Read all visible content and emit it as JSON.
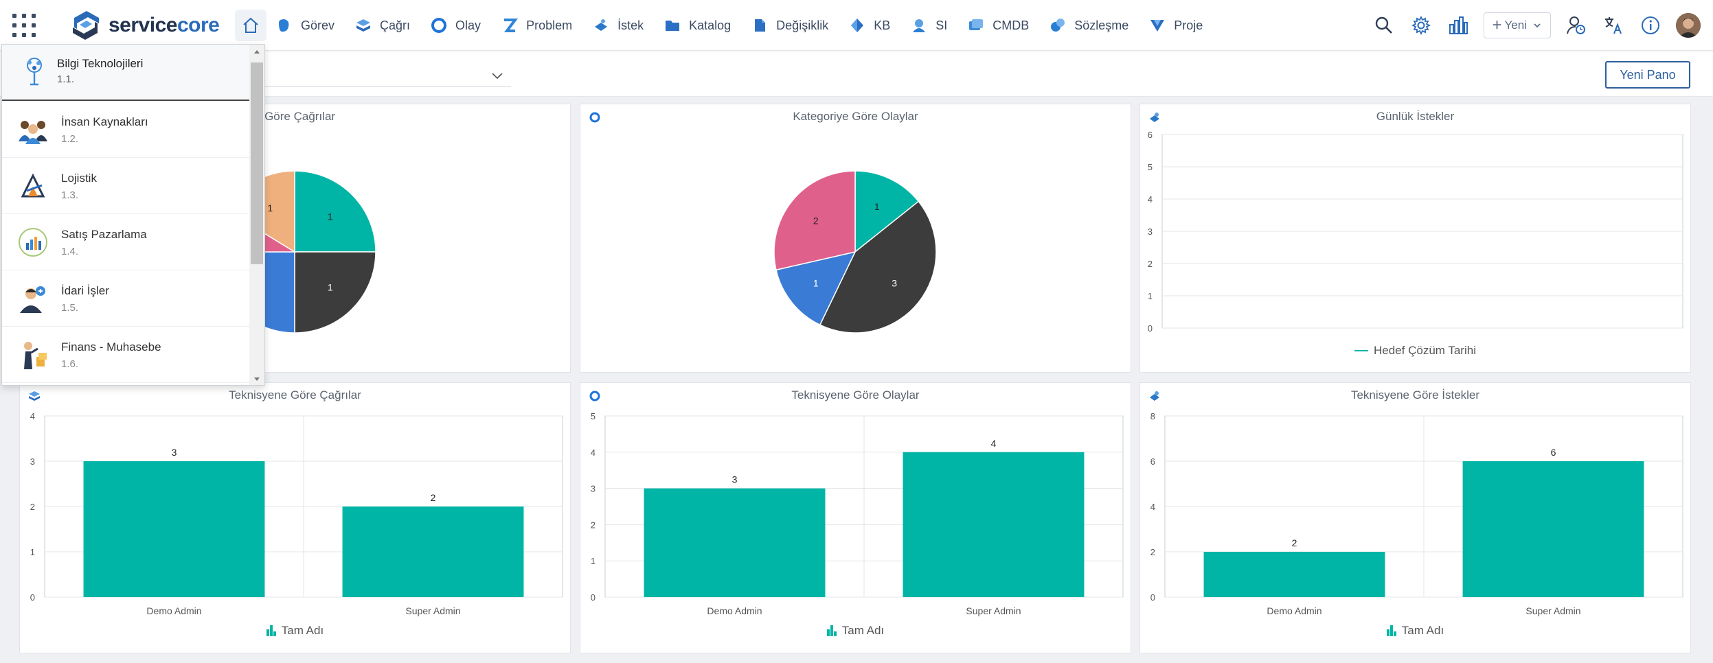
{
  "brand": {
    "name_a": "service",
    "name_b": "core"
  },
  "nav": [
    {
      "key": "gorev",
      "label": "Görev",
      "color": "#2a7fd4"
    },
    {
      "key": "cagri",
      "label": "Çağrı",
      "color": "#2a7fd4"
    },
    {
      "key": "olay",
      "label": "Olay",
      "color": "#1e73d8"
    },
    {
      "key": "problem",
      "label": "Problem",
      "color": "#2f86d6"
    },
    {
      "key": "istek",
      "label": "İstek",
      "color": "#2b78c9"
    },
    {
      "key": "katalog",
      "label": "Katalog",
      "color": "#2a6fc4"
    },
    {
      "key": "degisiklik",
      "label": "Değişiklik",
      "color": "#2a6fc4"
    },
    {
      "key": "kb",
      "label": "KB",
      "color": "#2a6fc4"
    },
    {
      "key": "si",
      "label": "SI",
      "color": "#2a7fd4"
    },
    {
      "key": "cmdb",
      "label": "CMDB",
      "color": "#3a8ad8"
    },
    {
      "key": "sozlesme",
      "label": "Sözleşme",
      "color": "#2a7fd4"
    },
    {
      "key": "proje",
      "label": "Proje",
      "color": "#2a6fc4"
    }
  ],
  "toolbar": {
    "new_label": "Yeni",
    "new_dashboard": "Yeni Pano"
  },
  "dropdown": {
    "items": [
      {
        "name": "Bilgi Teknolojileri",
        "code": "1.1."
      },
      {
        "name": "İnsan Kaynakları",
        "code": "1.2."
      },
      {
        "name": "Lojistik",
        "code": "1.3."
      },
      {
        "name": "Satış Pazarlama",
        "code": "1.4."
      },
      {
        "name": "İdari İşler",
        "code": "1.5."
      },
      {
        "name": "Finans - Muhasebe",
        "code": "1.6."
      }
    ]
  },
  "cards": {
    "pie1_title": "e Göre Çağrılar",
    "pie2_title": "Kategoriye Göre Olaylar",
    "line_title": "Günlük İstekler",
    "line_legend": "Hedef Çözüm Tarihi",
    "bar1_title": "Teknisyene Göre Çağrılar",
    "bar2_title": "Teknisyene Göre Olaylar",
    "bar3_title": "Teknisyene Göre İstekler",
    "bar_legend": "Tam Adı"
  },
  "colors": {
    "teal": "#00b5a6",
    "dark": "#3c3c3c",
    "blue": "#3a7bd5",
    "pink": "#e0608c",
    "peach": "#f0b07e",
    "accent": "#2b5f9e"
  },
  "chart_data": [
    {
      "type": "pie",
      "title": "e Göre Çağrılar",
      "slices": [
        {
          "value": 1,
          "color": "#00b5a6"
        },
        {
          "value": 1,
          "color": "#3c3c3c"
        },
        {
          "value": 1,
          "color": "#3a7bd5"
        },
        {
          "value": 0.35,
          "color": "#e0608c"
        },
        {
          "value": 0.65,
          "color": "#f0b07e"
        }
      ],
      "labels": [
        "1",
        "1",
        "1",
        "",
        "1"
      ]
    },
    {
      "type": "pie",
      "title": "Kategoriye Göre Olaylar",
      "slices": [
        {
          "value": 1,
          "color": "#00b5a6"
        },
        {
          "value": 3,
          "color": "#3c3c3c"
        },
        {
          "value": 1,
          "color": "#3a7bd5"
        },
        {
          "value": 2,
          "color": "#e0608c"
        }
      ],
      "labels": [
        "1",
        "3",
        "1",
        "2"
      ]
    },
    {
      "type": "line",
      "title": "Günlük İstekler",
      "series": [
        {
          "name": "Hedef Çözüm Tarihi",
          "values": []
        }
      ],
      "ylim": [
        0,
        6
      ],
      "yticks": [
        "0",
        "1",
        "2",
        "3",
        "4",
        "5",
        "6"
      ],
      "grid": true,
      "legend": "bottom"
    },
    {
      "type": "bar",
      "title": "Teknisyene Göre Çağrılar",
      "categories": [
        "Demo Admin",
        "Super Admin"
      ],
      "values": [
        3,
        2
      ],
      "ylim": [
        0,
        4
      ],
      "yticks": [
        "0",
        "1",
        "2",
        "3",
        "4"
      ],
      "series_name": "Tam Adı",
      "legend": "bottom"
    },
    {
      "type": "bar",
      "title": "Teknisyene Göre Olaylar",
      "categories": [
        "Demo Admin",
        "Super Admin"
      ],
      "values": [
        3,
        4
      ],
      "ylim": [
        0,
        5
      ],
      "yticks": [
        "0",
        "1",
        "2",
        "3",
        "4",
        "5"
      ],
      "series_name": "Tam Adı",
      "legend": "bottom"
    },
    {
      "type": "bar",
      "title": "Teknisyene Göre İstekler",
      "categories": [
        "Demo Admin",
        "Super Admin"
      ],
      "values": [
        2,
        6
      ],
      "ylim": [
        0,
        8
      ],
      "yticks": [
        "0",
        "2",
        "4",
        "6",
        "8"
      ],
      "series_name": "Tam Adı",
      "legend": "bottom"
    }
  ]
}
